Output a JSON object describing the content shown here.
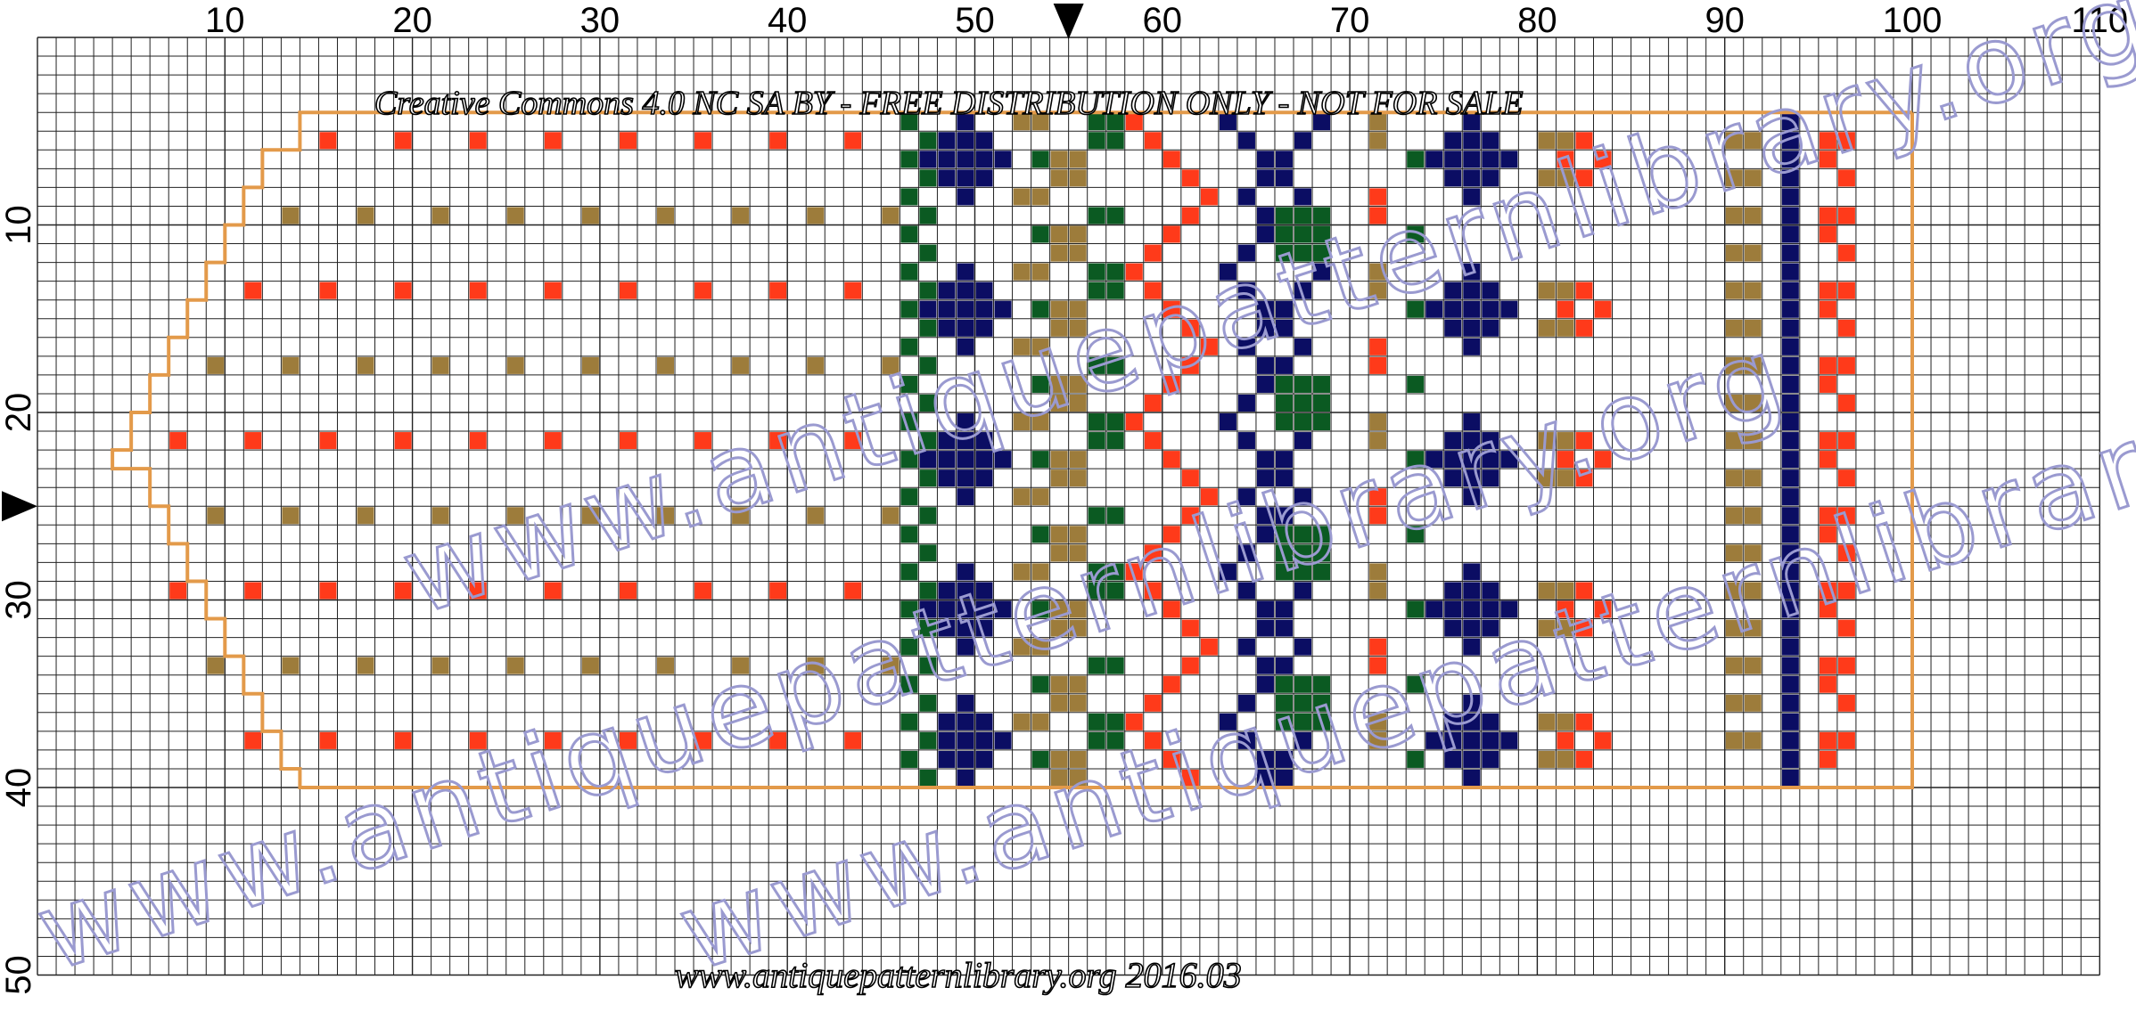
{
  "chart_data": {
    "type": "heatmap",
    "columns": 110,
    "rows": 50,
    "x_ticks": [
      10,
      20,
      30,
      40,
      50,
      60,
      70,
      80,
      90,
      100,
      110
    ],
    "y_ticks": [
      10,
      20,
      30,
      40,
      50
    ],
    "center_column_marker": 55,
    "center_row_marker": 25,
    "colors": {
      "red": "#ff3a1a",
      "tan": "#9d7c3b",
      "navy": "#0b0d63",
      "green": "#0b5a22",
      "outline": "#e39a4a",
      "grid": "#222222",
      "watermark": "#9a9ad0"
    },
    "outline_region": {
      "columns": [
        14,
        100
      ],
      "rows": [
        5,
        40
      ]
    }
  },
  "credit_text": "Creative Commons 4.0 NC SA BY - FREE DISTRIBUTION ONLY - NOT FOR SALE",
  "footer_text": "www.antiquepatternlibrary.org 2016.03",
  "watermark_text": "www.antiquepatternlibrary.org"
}
